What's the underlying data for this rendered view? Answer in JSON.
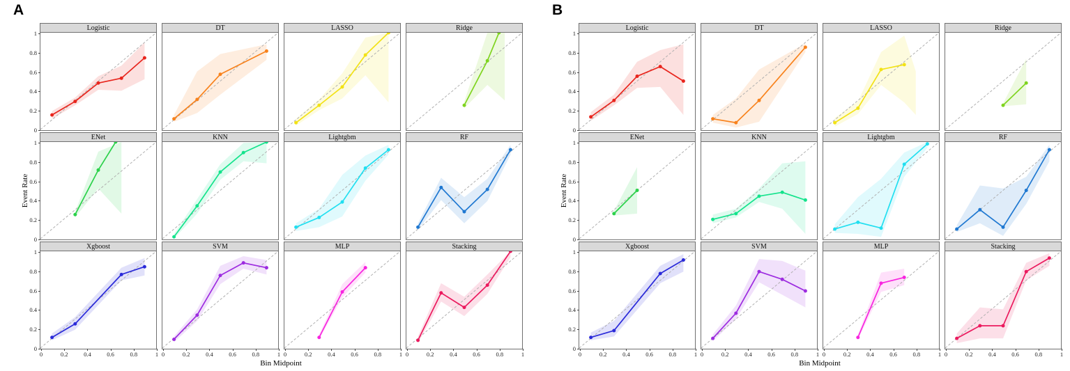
{
  "figure": {
    "panel_a_label": "A",
    "panel_b_label": "B",
    "xlabel": "Bin Midpoint",
    "ylabel": "Event Rate",
    "x_ticks": [
      0,
      0.2,
      0.4,
      0.6,
      0.8,
      1
    ],
    "y_ticks": [
      0,
      0.2,
      0.4,
      0.6,
      0.8,
      1
    ],
    "diagonal_color": "#b0b0b0",
    "strip_bg": "#d9d9d9",
    "strip_border": "#707070",
    "ribbon_opacity": 0.14
  },
  "chart_data": [
    {
      "panel": "A",
      "type": "line",
      "xlabel": "Bin Midpoint",
      "ylabel": "Event Rate",
      "x_range": [
        0,
        1
      ],
      "y_range": [
        0,
        1
      ],
      "grid": false,
      "reference_line": "diagonal y=x dashed",
      "subplots": [
        {
          "title": "Logistic",
          "color": "#e8251d",
          "x": [
            0.1,
            0.3,
            0.5,
            0.7,
            0.9
          ],
          "y": [
            0.15,
            0.29,
            0.48,
            0.53,
            0.74
          ],
          "ribbon": {
            "x": [
              0.1,
              0.3,
              0.5,
              0.7,
              0.9
            ],
            "lo": [
              0.11,
              0.25,
              0.41,
              0.4,
              0.52
            ],
            "hi": [
              0.19,
              0.33,
              0.55,
              0.66,
              0.9
            ]
          }
        },
        {
          "title": "DT",
          "color": "#f8821c",
          "x": [
            0.1,
            0.3,
            0.5,
            0.9
          ],
          "y": [
            0.11,
            0.31,
            0.57,
            0.81
          ],
          "ribbon": {
            "x": [
              0.1,
              0.3,
              0.5,
              0.9
            ],
            "lo": [
              0.08,
              0.17,
              0.36,
              0.72
            ],
            "hi": [
              0.15,
              0.6,
              0.78,
              0.88
            ]
          }
        },
        {
          "title": "LASSO",
          "color": "#f2e216",
          "x": [
            0.1,
            0.3,
            0.5,
            0.7,
            0.9
          ],
          "y": [
            0.07,
            0.25,
            0.44,
            0.77,
            1.0
          ],
          "ribbon": {
            "x": [
              0.1,
              0.3,
              0.5,
              0.7,
              0.9
            ],
            "lo": [
              0.04,
              0.2,
              0.32,
              0.56,
              0.28
            ],
            "hi": [
              0.11,
              0.31,
              0.58,
              0.95,
              1.0
            ]
          }
        },
        {
          "title": "Ridge",
          "color": "#7fd41f",
          "x": [
            0.5,
            0.7,
            0.8
          ],
          "y": [
            0.25,
            0.71,
            1.0
          ],
          "ribbon": {
            "x": [
              0.5,
              0.7,
              0.85
            ],
            "lo": [
              0.22,
              0.46,
              0.3
            ],
            "hi": [
              0.29,
              1.0,
              1.0
            ]
          }
        },
        {
          "title": "ENet",
          "color": "#2cd14b",
          "x": [
            0.3,
            0.5,
            0.65
          ],
          "y": [
            0.25,
            0.71,
            1.0
          ],
          "ribbon": {
            "x": [
              0.3,
              0.5,
              0.7
            ],
            "lo": [
              0.22,
              0.52,
              0.26
            ],
            "hi": [
              0.28,
              0.9,
              1.0
            ]
          }
        },
        {
          "title": "KNN",
          "color": "#14e38c",
          "x": [
            0.1,
            0.3,
            0.5,
            0.7,
            0.9
          ],
          "y": [
            0.02,
            0.34,
            0.69,
            0.89,
            1.0
          ],
          "ribbon": {
            "x": [
              0.1,
              0.3,
              0.5,
              0.7,
              0.9
            ],
            "lo": [
              0.0,
              0.26,
              0.61,
              0.8,
              0.78
            ],
            "hi": [
              0.05,
              0.41,
              0.77,
              0.99,
              1.0
            ]
          }
        },
        {
          "title": "Lightgbm",
          "color": "#21dff0",
          "x": [
            0.1,
            0.3,
            0.5,
            0.7,
            0.9
          ],
          "y": [
            0.12,
            0.22,
            0.38,
            0.73,
            0.92
          ],
          "ribbon": {
            "x": [
              0.1,
              0.3,
              0.5,
              0.7,
              0.9
            ],
            "lo": [
              0.08,
              0.12,
              0.23,
              0.6,
              0.87
            ],
            "hi": [
              0.16,
              0.31,
              0.66,
              0.86,
              0.97
            ]
          }
        },
        {
          "title": "RF",
          "color": "#1f78d1",
          "x": [
            0.1,
            0.3,
            0.5,
            0.7,
            0.9
          ],
          "y": [
            0.12,
            0.53,
            0.28,
            0.51,
            0.92
          ],
          "ribbon": {
            "x": [
              0.1,
              0.3,
              0.5,
              0.7,
              0.9
            ],
            "lo": [
              0.09,
              0.4,
              0.16,
              0.39,
              0.87
            ],
            "hi": [
              0.16,
              0.63,
              0.43,
              0.62,
              0.97
            ]
          }
        },
        {
          "title": "Xgboost",
          "color": "#2a2ad9",
          "x": [
            0.1,
            0.3,
            0.7,
            0.9
          ],
          "y": [
            0.11,
            0.25,
            0.76,
            0.84
          ],
          "ribbon": {
            "x": [
              0.1,
              0.3,
              0.7,
              0.9
            ],
            "lo": [
              0.08,
              0.19,
              0.7,
              0.75
            ],
            "hi": [
              0.15,
              0.32,
              0.83,
              0.93
            ]
          }
        },
        {
          "title": "SVM",
          "color": "#9d2ce0",
          "x": [
            0.1,
            0.3,
            0.5,
            0.7,
            0.9
          ],
          "y": [
            0.09,
            0.34,
            0.75,
            0.88,
            0.83
          ],
          "ribbon": {
            "x": [
              0.1,
              0.3,
              0.5,
              0.7,
              0.9
            ],
            "lo": [
              0.06,
              0.28,
              0.66,
              0.82,
              0.76
            ],
            "hi": [
              0.12,
              0.4,
              0.85,
              0.95,
              0.91
            ]
          }
        },
        {
          "title": "MLP",
          "color": "#f824df",
          "x": [
            0.3,
            0.5,
            0.7
          ],
          "y": [
            0.11,
            0.58,
            0.83
          ],
          "ribbon": {
            "x": [
              0.3,
              0.5,
              0.7
            ],
            "lo": [
              0.09,
              0.52,
              0.78
            ],
            "hi": [
              0.14,
              0.66,
              0.89
            ]
          }
        },
        {
          "title": "Stacking",
          "color": "#eb1a5e",
          "x": [
            0.1,
            0.3,
            0.5,
            0.7,
            0.9
          ],
          "y": [
            0.08,
            0.57,
            0.42,
            0.65,
            1.0
          ],
          "ribbon": {
            "x": [
              0.1,
              0.3,
              0.5,
              0.7,
              0.9
            ],
            "lo": [
              0.05,
              0.48,
              0.33,
              0.56,
              0.94
            ],
            "hi": [
              0.12,
              0.67,
              0.53,
              0.76,
              1.0
            ]
          }
        }
      ]
    },
    {
      "panel": "B",
      "type": "line",
      "xlabel": "Bin Midpoint",
      "ylabel": "Event Rate",
      "x_range": [
        0,
        1
      ],
      "y_range": [
        0,
        1
      ],
      "grid": false,
      "reference_line": "diagonal y=x dashed",
      "subplots": [
        {
          "title": "Logistic",
          "color": "#e8251d",
          "x": [
            0.1,
            0.3,
            0.5,
            0.7,
            0.9
          ],
          "y": [
            0.13,
            0.3,
            0.55,
            0.65,
            0.5
          ],
          "ribbon": {
            "x": [
              0.1,
              0.3,
              0.5,
              0.7,
              0.9
            ],
            "lo": [
              0.09,
              0.25,
              0.43,
              0.44,
              0.15
            ],
            "hi": [
              0.18,
              0.36,
              0.7,
              0.82,
              0.88
            ]
          }
        },
        {
          "title": "DT",
          "color": "#f8821c",
          "x": [
            0.1,
            0.3,
            0.5,
            0.9
          ],
          "y": [
            0.11,
            0.07,
            0.3,
            0.85
          ],
          "ribbon": {
            "x": [
              0.1,
              0.3,
              0.5,
              0.9
            ],
            "lo": [
              0.07,
              0.02,
              0.08,
              0.8
            ],
            "hi": [
              0.15,
              0.32,
              0.62,
              0.89
            ]
          }
        },
        {
          "title": "LASSO",
          "color": "#f2e216",
          "x": [
            0.1,
            0.3,
            0.5,
            0.7
          ],
          "y": [
            0.07,
            0.22,
            0.62,
            0.67
          ],
          "ribbon": {
            "x": [
              0.1,
              0.3,
              0.5,
              0.7,
              0.8
            ],
            "lo": [
              0.03,
              0.16,
              0.46,
              0.28,
              0.15
            ],
            "hi": [
              0.12,
              0.29,
              0.8,
              0.97,
              0.6
            ]
          }
        },
        {
          "title": "Ridge",
          "color": "#7fd41f",
          "x": [
            0.5,
            0.7
          ],
          "y": [
            0.25,
            0.48
          ],
          "ribbon": {
            "x": [
              0.5,
              0.7
            ],
            "lo": [
              0.24,
              0.26
            ],
            "hi": [
              0.27,
              0.73
            ]
          }
        },
        {
          "title": "ENet",
          "color": "#2cd14b",
          "x": [
            0.3,
            0.5
          ],
          "y": [
            0.26,
            0.5
          ],
          "ribbon": {
            "x": [
              0.3,
              0.5
            ],
            "lo": [
              0.24,
              0.26
            ],
            "hi": [
              0.29,
              0.74
            ]
          }
        },
        {
          "title": "KNN",
          "color": "#14e38c",
          "x": [
            0.1,
            0.3,
            0.5,
            0.7,
            0.9
          ],
          "y": [
            0.2,
            0.26,
            0.44,
            0.48,
            0.4
          ],
          "ribbon": {
            "x": [
              0.1,
              0.3,
              0.5,
              0.7,
              0.9
            ],
            "lo": [
              0.16,
              0.22,
              0.38,
              0.31,
              0.05
            ],
            "hi": [
              0.25,
              0.31,
              0.52,
              0.78,
              0.8
            ]
          }
        },
        {
          "title": "Lightgbm",
          "color": "#21dff0",
          "x": [
            0.1,
            0.3,
            0.5,
            0.7,
            0.9
          ],
          "y": [
            0.1,
            0.17,
            0.11,
            0.77,
            0.98
          ],
          "ribbon": {
            "x": [
              0.1,
              0.3,
              0.5,
              0.7,
              0.9
            ],
            "lo": [
              0.06,
              0.05,
              0.02,
              0.64,
              0.94
            ],
            "hi": [
              0.15,
              0.43,
              0.62,
              0.89,
              1.0
            ]
          }
        },
        {
          "title": "RF",
          "color": "#1f78d1",
          "x": [
            0.1,
            0.3,
            0.5,
            0.7,
            0.9
          ],
          "y": [
            0.1,
            0.3,
            0.12,
            0.5,
            0.92
          ],
          "ribbon": {
            "x": [
              0.1,
              0.3,
              0.5,
              0.7,
              0.9
            ],
            "lo": [
              0.07,
              0.16,
              0.03,
              0.36,
              0.8
            ],
            "hi": [
              0.14,
              0.55,
              0.52,
              0.64,
              0.97
            ]
          }
        },
        {
          "title": "Xgboost",
          "color": "#2a2ad9",
          "x": [
            0.1,
            0.3,
            0.7,
            0.9
          ],
          "y": [
            0.11,
            0.18,
            0.77,
            0.91
          ],
          "ribbon": {
            "x": [
              0.1,
              0.3,
              0.7,
              0.9
            ],
            "lo": [
              0.08,
              0.12,
              0.67,
              0.79
            ],
            "hi": [
              0.16,
              0.28,
              0.85,
              0.97
            ]
          }
        },
        {
          "title": "SVM",
          "color": "#9d2ce0",
          "x": [
            0.1,
            0.3,
            0.5,
            0.7,
            0.9
          ],
          "y": [
            0.1,
            0.36,
            0.79,
            0.71,
            0.59
          ],
          "ribbon": {
            "x": [
              0.1,
              0.3,
              0.5,
              0.7,
              0.9
            ],
            "lo": [
              0.07,
              0.3,
              0.68,
              0.55,
              0.42
            ],
            "hi": [
              0.14,
              0.44,
              0.92,
              0.9,
              0.8
            ]
          }
        },
        {
          "title": "MLP",
          "color": "#f824df",
          "x": [
            0.3,
            0.5,
            0.7
          ],
          "y": [
            0.11,
            0.67,
            0.73
          ],
          "ribbon": {
            "x": [
              0.3,
              0.5,
              0.7
            ],
            "lo": [
              0.09,
              0.58,
              0.65
            ],
            "hi": [
              0.14,
              0.78,
              0.82
            ]
          }
        },
        {
          "title": "Stacking",
          "color": "#eb1a5e",
          "x": [
            0.1,
            0.3,
            0.5,
            0.7,
            0.9
          ],
          "y": [
            0.1,
            0.23,
            0.23,
            0.79,
            0.93
          ],
          "ribbon": {
            "x": [
              0.1,
              0.3,
              0.5,
              0.7,
              0.9
            ],
            "lo": [
              0.05,
              0.1,
              0.1,
              0.7,
              0.85
            ],
            "hi": [
              0.15,
              0.42,
              0.4,
              0.88,
              0.98
            ]
          }
        }
      ]
    }
  ]
}
